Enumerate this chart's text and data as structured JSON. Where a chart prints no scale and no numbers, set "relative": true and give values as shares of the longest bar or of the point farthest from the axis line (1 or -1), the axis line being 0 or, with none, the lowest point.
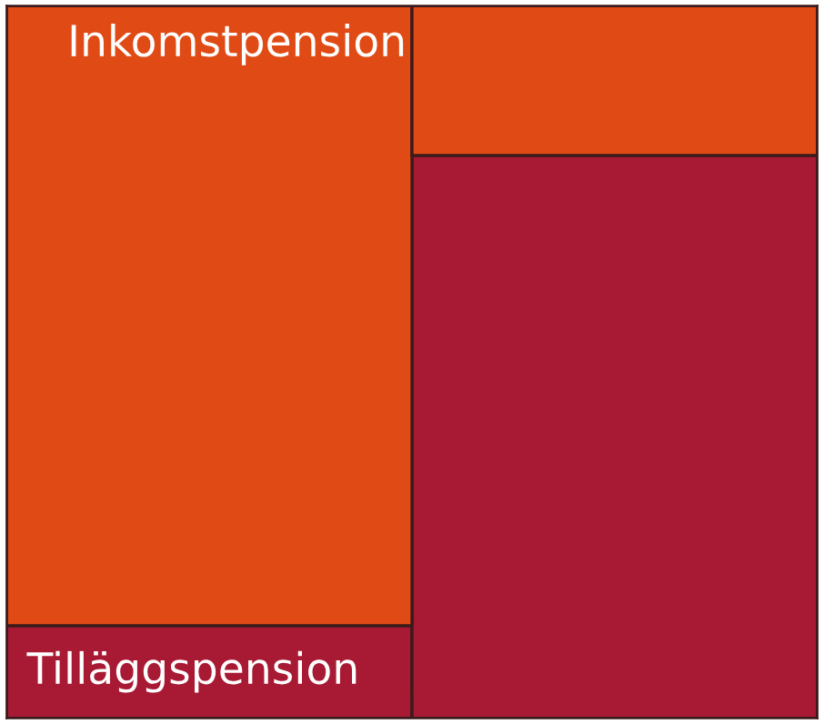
{
  "chart_data": {
    "type": "bar",
    "stacked": true,
    "relative": true,
    "categories": [
      null,
      null
    ],
    "series": [
      {
        "name": "Tilläggspension",
        "color": "#a81a33",
        "values": [
          0.13,
          0.79
        ]
      },
      {
        "name": "Inkomstpension",
        "color": "#e04a14",
        "values": [
          0.87,
          0.21
        ]
      }
    ]
  }
}
